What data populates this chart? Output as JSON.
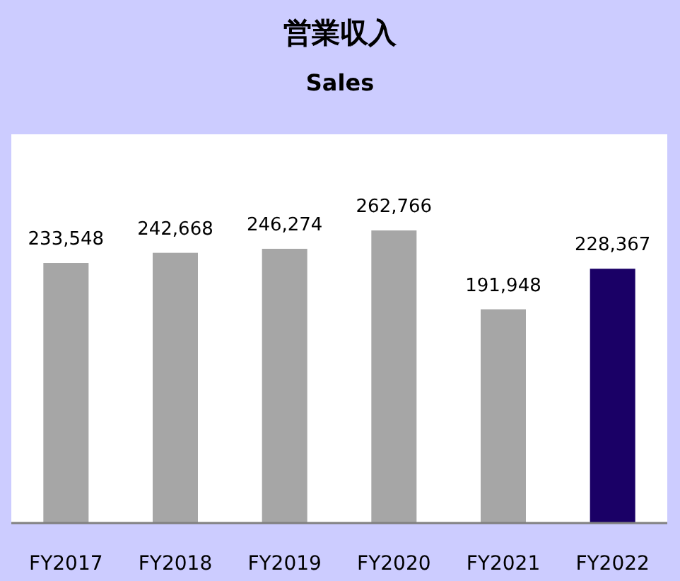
{
  "chart_data": {
    "type": "bar",
    "title": "営業収入",
    "subtitle": "Sales",
    "categories": [
      "FY2017",
      "FY2018",
      "FY2019",
      "FY2020",
      "FY2021",
      "FY2022"
    ],
    "values": [
      233548,
      242668,
      246274,
      262766,
      191948,
      228367
    ],
    "value_labels": [
      "233,548",
      "242,668",
      "246,274",
      "262,766",
      "191,948",
      "228,367"
    ],
    "colors": [
      "#a6a6a6",
      "#a6a6a6",
      "#a6a6a6",
      "#a6a6a6",
      "#a6a6a6",
      "#1a0066"
    ]
  }
}
